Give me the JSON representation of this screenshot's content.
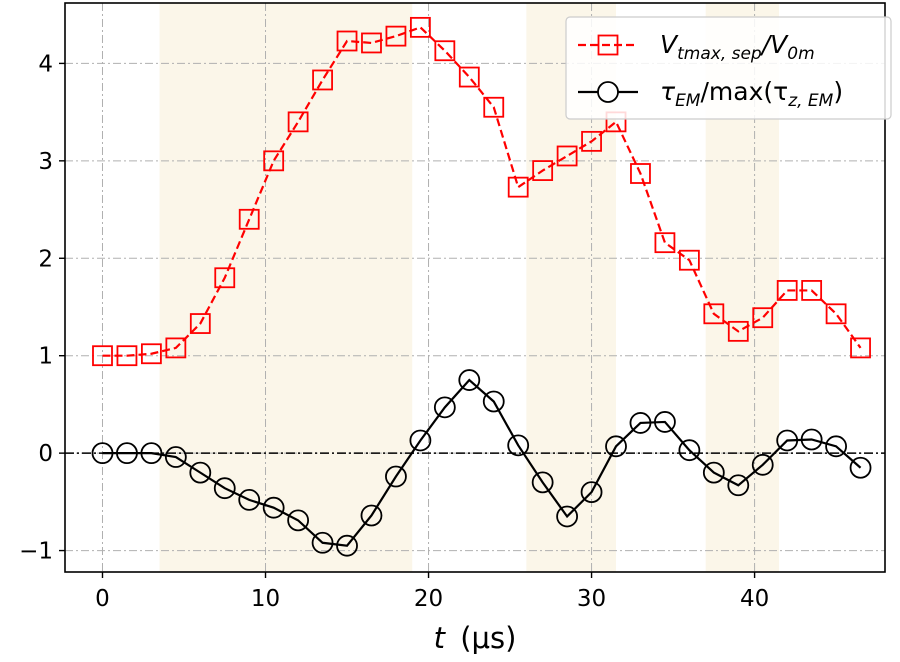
{
  "chart_data": {
    "type": "line",
    "xlabel": "t (μs)",
    "xlabel_var": "t",
    "xlabel_unit": "(μs)",
    "xlim": [
      -2.3,
      48.0
    ],
    "ylim": [
      -1.22,
      4.62
    ],
    "x_ticks": [
      0,
      10,
      20,
      30,
      40
    ],
    "y_ticks": [
      -1,
      0,
      1,
      2,
      3,
      4
    ],
    "x_tick_labels": [
      "0",
      "10",
      "20",
      "30",
      "40"
    ],
    "y_tick_labels": [
      "−1",
      "0",
      "1",
      "2",
      "3",
      "4"
    ],
    "grid": true,
    "legend_position": "top-right",
    "shaded_regions": [
      [
        3.5,
        19.0
      ],
      [
        26.0,
        31.5
      ],
      [
        37.0,
        41.5
      ]
    ],
    "shade_color": "#fbf6e9",
    "series": [
      {
        "name": "V_tmax,sep / V_0m",
        "color": "#ff0000",
        "linestyle": "dashed",
        "marker": "square",
        "x": [
          0,
          1.5,
          3,
          4.5,
          6,
          7.5,
          9,
          10.5,
          12,
          13.5,
          15,
          16.5,
          18,
          19.5,
          21,
          22.5,
          24,
          25.5,
          27,
          28.5,
          30,
          31.5,
          33,
          34.5,
          36,
          37.5,
          39,
          40.5,
          42,
          43.5,
          45,
          46.5
        ],
        "y": [
          1.0,
          1.0,
          1.02,
          1.08,
          1.33,
          1.8,
          2.4,
          3.0,
          3.4,
          3.83,
          4.23,
          4.21,
          4.28,
          4.37,
          4.13,
          3.86,
          3.55,
          2.73,
          2.9,
          3.05,
          3.2,
          3.4,
          2.87,
          2.16,
          1.98,
          1.43,
          1.25,
          1.39,
          1.67,
          1.67,
          1.43,
          1.08
        ]
      },
      {
        "name": "τ_EM / max(τ_z,EM)",
        "color": "#000000",
        "linestyle": "solid",
        "marker": "circle",
        "x": [
          0,
          1.5,
          3,
          4.5,
          6,
          7.5,
          9,
          10.5,
          12,
          13.5,
          15,
          16.5,
          18,
          19.5,
          21,
          22.5,
          24,
          25.5,
          27,
          28.5,
          30,
          31.5,
          33,
          34.5,
          36,
          37.5,
          39,
          40.5,
          42,
          43.5,
          45,
          46.5
        ],
        "y": [
          0.0,
          0.0,
          0.0,
          -0.04,
          -0.2,
          -0.36,
          -0.48,
          -0.56,
          -0.69,
          -0.92,
          -0.95,
          -0.64,
          -0.24,
          0.13,
          0.47,
          0.75,
          0.53,
          0.08,
          -0.3,
          -0.65,
          -0.4,
          0.07,
          0.31,
          0.32,
          0.03,
          -0.2,
          -0.33,
          -0.12,
          0.13,
          0.14,
          0.07,
          -0.15
        ]
      }
    ],
    "legend": [
      {
        "main": "V",
        "sub": "tmax, sep",
        "main2": "/V",
        "sub2": "0m"
      },
      {
        "main": "τ",
        "sub": "EM",
        "main2": "/max(τ",
        "sub2": "z, EM",
        "tail": ")"
      }
    ]
  }
}
